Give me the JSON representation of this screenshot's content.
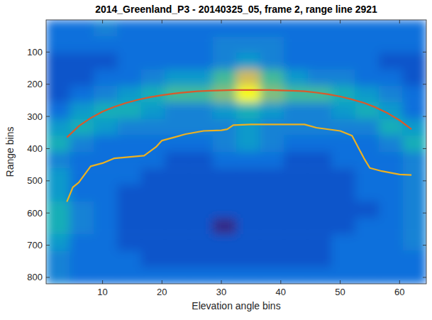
{
  "chart_data": {
    "type": "heatmap",
    "title": "2014_Greenland_P3 - 20140325_05, frame 2, range line 2921",
    "x_label": "Elevation angle bins",
    "y_label": "Range bins",
    "xlim": [
      0.5,
      64.5
    ],
    "ylim": [
      820,
      0
    ],
    "xticks": [
      10,
      20,
      30,
      40,
      50,
      60
    ],
    "yticks": [
      100,
      200,
      300,
      400,
      500,
      600,
      700,
      800
    ],
    "cells": [
      [
        3,
        3,
        4,
        3,
        3,
        3,
        3,
        3,
        3,
        3,
        3,
        3,
        3,
        3,
        3,
        3
      ],
      [
        3,
        3,
        3,
        3,
        3,
        3,
        3,
        4,
        4,
        4,
        3,
        3,
        3,
        3,
        3,
        3
      ],
      [
        2,
        2,
        2,
        3,
        3,
        3,
        3,
        4,
        5,
        4,
        3,
        3,
        3,
        3,
        2,
        2
      ],
      [
        2,
        2,
        3,
        3,
        4,
        5,
        5,
        7,
        9,
        7,
        5,
        4,
        4,
        3,
        3,
        2
      ],
      [
        2,
        3,
        4,
        5,
        6,
        7,
        7,
        8,
        10,
        8,
        7,
        7,
        6,
        5,
        4,
        3
      ],
      [
        3,
        5,
        6,
        6,
        5,
        4,
        4,
        5,
        6,
        5,
        4,
        4,
        5,
        6,
        5,
        3
      ],
      [
        5,
        6,
        5,
        4,
        4,
        4,
        4,
        4,
        5,
        4,
        4,
        4,
        4,
        4,
        6,
        5
      ],
      [
        6,
        4,
        3,
        3,
        3,
        3,
        3,
        4,
        5,
        4,
        3,
        3,
        3,
        3,
        4,
        6
      ],
      [
        4,
        3,
        3,
        3,
        3,
        2,
        2,
        3,
        3,
        3,
        2,
        2,
        3,
        3,
        3,
        4
      ],
      [
        5,
        3,
        3,
        3,
        2,
        2,
        2,
        2,
        2,
        2,
        2,
        2,
        2,
        3,
        3,
        4
      ],
      [
        5,
        3,
        3,
        2,
        2,
        2,
        2,
        2,
        2,
        2,
        2,
        2,
        2,
        3,
        3,
        4
      ],
      [
        6,
        4,
        3,
        2,
        2,
        2,
        2,
        2,
        2,
        2,
        2,
        2,
        2,
        2,
        3,
        4
      ],
      [
        6,
        4,
        3,
        2,
        2,
        2,
        2,
        1,
        2,
        2,
        2,
        2,
        2,
        3,
        3,
        4
      ],
      [
        5,
        3,
        3,
        2,
        2,
        2,
        2,
        2,
        2,
        2,
        2,
        2,
        3,
        3,
        3,
        4
      ],
      [
        4,
        3,
        3,
        3,
        2,
        2,
        2,
        2,
        2,
        2,
        2,
        2,
        3,
        3,
        3,
        3
      ],
      [
        4,
        3,
        3,
        3,
        3,
        3,
        3,
        3,
        3,
        3,
        3,
        3,
        3,
        3,
        3,
        3
      ]
    ],
    "series": [
      {
        "type": "line",
        "color": "#d95a2b",
        "x": [
          4,
          6,
          8,
          10,
          12,
          14,
          16,
          18,
          20,
          22,
          24,
          26,
          28,
          30,
          32,
          34,
          36,
          38,
          40,
          42,
          44,
          46,
          48,
          50,
          52,
          54,
          56,
          58,
          60,
          62
        ],
        "values": [
          365,
          330,
          305,
          285,
          270,
          258,
          248,
          240,
          234,
          229,
          225,
          222,
          220,
          219,
          218,
          218,
          218,
          218,
          219,
          220,
          222,
          226,
          231,
          238,
          247,
          258,
          272,
          290,
          312,
          340
        ]
      },
      {
        "type": "line",
        "color": "#edb120",
        "x": [
          4,
          5,
          6,
          8,
          10,
          12,
          15,
          17,
          19,
          20,
          22,
          24,
          27,
          30,
          31,
          32,
          35,
          40,
          44,
          46,
          50,
          52,
          54,
          55,
          57,
          60,
          62
        ],
        "values": [
          565,
          520,
          505,
          455,
          445,
          430,
          425,
          422,
          395,
          375,
          365,
          355,
          345,
          343,
          340,
          327,
          325,
          325,
          325,
          335,
          345,
          360,
          430,
          460,
          470,
          480,
          482
        ]
      }
    ]
  }
}
